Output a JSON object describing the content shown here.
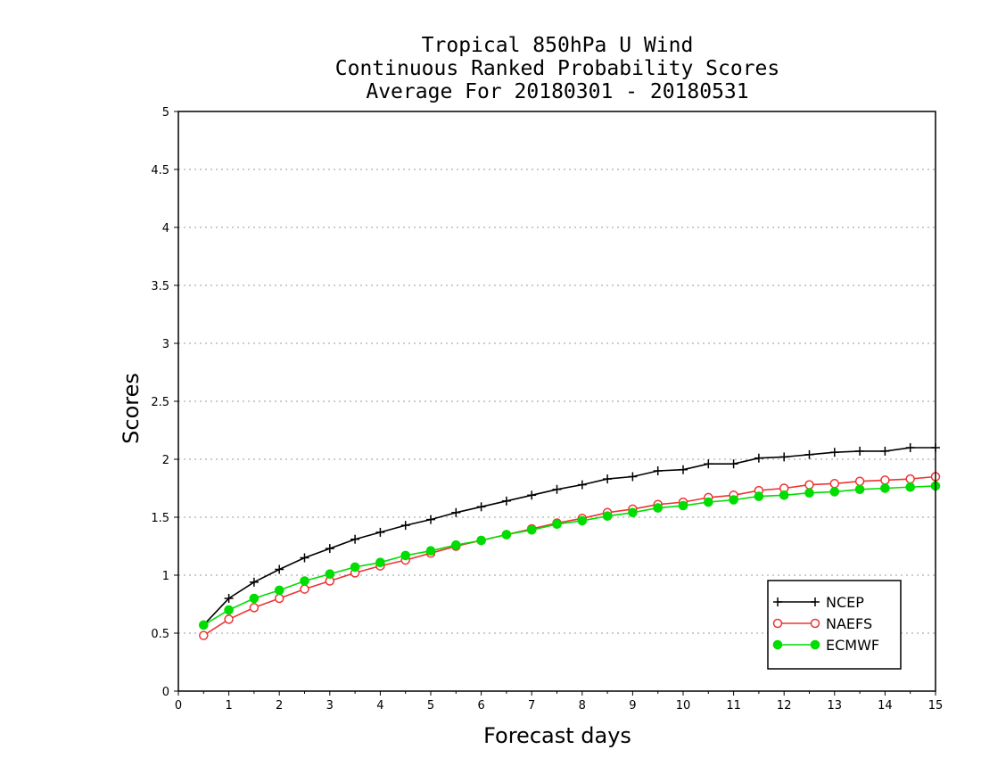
{
  "chart_data": {
    "type": "line",
    "title": "Tropical 850hPa U Wind",
    "subtitle": [
      "Continuous Ranked Probability Scores",
      "Average For 20180301 - 20180531"
    ],
    "xlabel": "Forecast days",
    "ylabel": "Scores",
    "xlim": [
      0,
      15
    ],
    "ylim": [
      0,
      5
    ],
    "x_ticks": [
      "0",
      "1",
      "2",
      "3",
      "4",
      "5",
      "6",
      "7",
      "8",
      "9",
      "10",
      "11",
      "12",
      "13",
      "14",
      "15"
    ],
    "y_ticks": [
      "0",
      "0.5",
      "1",
      "1.5",
      "2",
      "2.5",
      "3",
      "3.5",
      "4",
      "4.5",
      "5"
    ],
    "grid": "horizontal dotted",
    "legend_position": "bottom-right",
    "x": [
      0.5,
      1,
      1.5,
      2,
      2.5,
      3,
      3.5,
      4,
      4.5,
      5,
      5.5,
      6,
      6.5,
      7,
      7.5,
      8,
      8.5,
      9,
      9.5,
      10,
      10.5,
      11,
      11.5,
      12,
      12.5,
      13,
      13.5,
      14,
      14.5,
      15
    ],
    "series": [
      {
        "name": "NCEP",
        "color": "#000000",
        "marker": "plus",
        "values": [
          0.57,
          0.8,
          0.94,
          1.05,
          1.15,
          1.23,
          1.31,
          1.37,
          1.43,
          1.48,
          1.54,
          1.59,
          1.64,
          1.69,
          1.74,
          1.78,
          1.83,
          1.85,
          1.9,
          1.91,
          1.96,
          1.96,
          2.01,
          2.02,
          2.04,
          2.06,
          2.07,
          2.07,
          2.1,
          2.1
        ]
      },
      {
        "name": "NAEFS",
        "color": "#ee3333",
        "marker": "open-circle",
        "values": [
          0.48,
          0.62,
          0.72,
          0.8,
          0.88,
          0.95,
          1.02,
          1.08,
          1.13,
          1.19,
          1.25,
          1.3,
          1.35,
          1.4,
          1.45,
          1.49,
          1.54,
          1.57,
          1.61,
          1.63,
          1.67,
          1.69,
          1.73,
          1.75,
          1.78,
          1.79,
          1.81,
          1.82,
          1.83,
          1.85
        ]
      },
      {
        "name": "ECMWF",
        "color": "#00dd00",
        "marker": "filled-circle",
        "values": [
          0.57,
          0.7,
          0.8,
          0.87,
          0.95,
          1.01,
          1.07,
          1.11,
          1.17,
          1.21,
          1.26,
          1.3,
          1.35,
          1.39,
          1.44,
          1.47,
          1.51,
          1.54,
          1.58,
          1.6,
          1.63,
          1.65,
          1.68,
          1.69,
          1.71,
          1.72,
          1.74,
          1.75,
          1.76,
          1.77
        ]
      }
    ]
  }
}
